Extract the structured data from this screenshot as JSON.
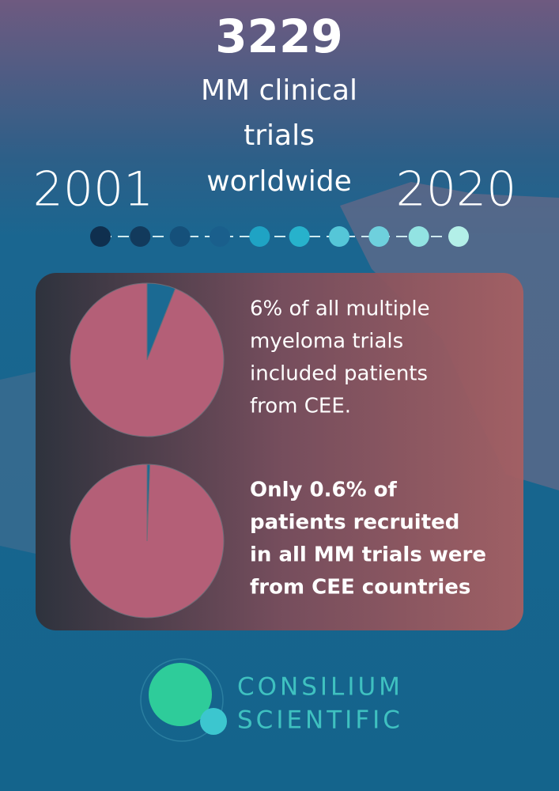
{
  "header": {
    "count": "3229",
    "subtitle_lines": [
      "MM clinical",
      "trials",
      "worldwide"
    ],
    "start_year": "2001",
    "end_year": "2020"
  },
  "timeline_colors": [
    "#0f2f4e",
    "#123a5c",
    "#15507a",
    "#1a5f8c",
    "#1fa3c4",
    "#27b2cc",
    "#55c6d8",
    "#6ed0dd",
    "#92e3e2",
    "#b3efe8"
  ],
  "chart_data": [
    {
      "type": "pie",
      "values": [
        6,
        94
      ],
      "colors": [
        "#1b6a93",
        "#b45f77"
      ],
      "caption_lines": [
        "6% of all multiple",
        "myeloma trials",
        "included patients",
        "from CEE."
      ],
      "caption_bold": false
    },
    {
      "type": "pie",
      "values": [
        0.6,
        99.4
      ],
      "colors": [
        "#1b6a93",
        "#b45f77"
      ],
      "caption_lines": [
        "Only 0.6% of",
        "patients recruited",
        "in all MM trials were",
        "from CEE countries"
      ],
      "caption_bold": true
    }
  ],
  "logo": {
    "lines": [
      "CONSILIUM",
      "SCIENTIFIC"
    ]
  }
}
